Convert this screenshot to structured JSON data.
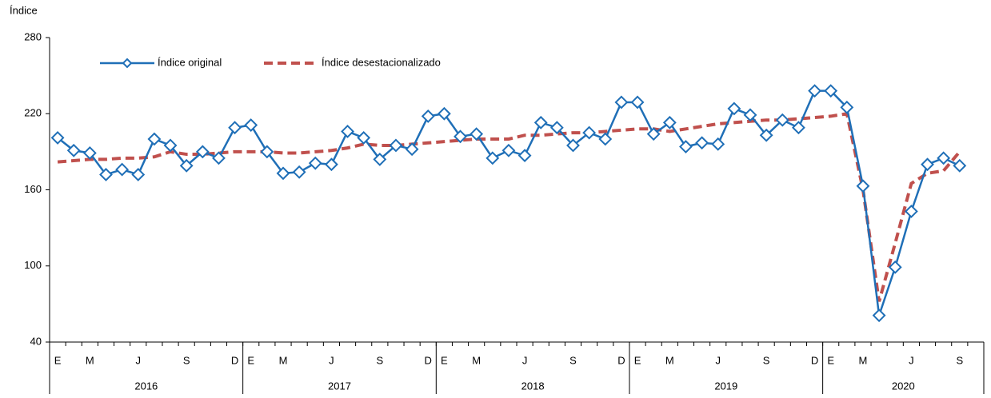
{
  "chart_data": {
    "type": "line",
    "y_axis_label": "Índice",
    "categories": [
      "E",
      null,
      "M",
      null,
      null,
      "J",
      null,
      null,
      "S",
      null,
      null,
      "D",
      "E",
      null,
      "M",
      null,
      null,
      "J",
      null,
      null,
      "S",
      null,
      null,
      "D",
      "E",
      null,
      "M",
      null,
      null,
      "J",
      null,
      null,
      "S",
      null,
      null,
      "D",
      "E",
      null,
      "M",
      null,
      null,
      "J",
      null,
      null,
      "S",
      null,
      null,
      "D",
      "E",
      null,
      "M",
      null,
      null,
      "J",
      null,
      null,
      "S",
      null
    ],
    "year_labels": [
      "2016",
      "2017",
      "2018",
      "2019",
      "2020"
    ],
    "series": [
      {
        "name": "Índice original",
        "color": "#1f6fb7",
        "style": "solid-diamond",
        "values": [
          201,
          191,
          189,
          172,
          176,
          172,
          200,
          195,
          179,
          190,
          185,
          209,
          211,
          190,
          173,
          174,
          181,
          180,
          206,
          201,
          184,
          195,
          192,
          218,
          220,
          202,
          204,
          185,
          191,
          187,
          213,
          209,
          195,
          205,
          200,
          229,
          229,
          204,
          213,
          194,
          197,
          196,
          224,
          219,
          203,
          215,
          209,
          238,
          238,
          225,
          163,
          61,
          99,
          143,
          180,
          185,
          179,
          null
        ]
      },
      {
        "name": "Índice desestacionalizado",
        "color": "#c0504d",
        "style": "dashed",
        "values": [
          182,
          183,
          184,
          184,
          185,
          185,
          186,
          190,
          188,
          188,
          189,
          190,
          190,
          190,
          189,
          189,
          190,
          191,
          193,
          196,
          195,
          195,
          196,
          197,
          198,
          199,
          200,
          200,
          200,
          203,
          203,
          204,
          205,
          205,
          206,
          207,
          208,
          208,
          206,
          208,
          210,
          212,
          213,
          214,
          215,
          215,
          216,
          217,
          218,
          220,
          160,
          72,
          118,
          165,
          173,
          175,
          190,
          null
        ]
      }
    ],
    "ylim": [
      40,
      280
    ],
    "yticks": [
      40,
      100,
      160,
      220,
      280
    ],
    "grid": false,
    "legend": "top-left"
  }
}
